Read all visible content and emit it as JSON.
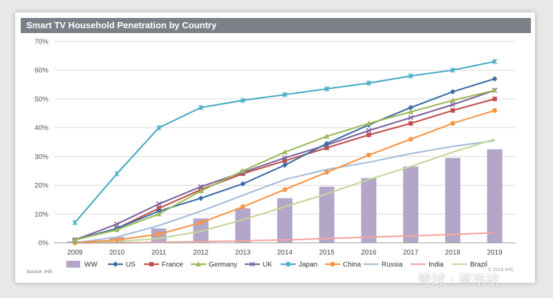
{
  "chart_data": {
    "type": "bar+line",
    "title": "Smart TV Household Penetration by Country",
    "xlabel": "",
    "ylabel": "",
    "ylim": [
      0,
      70
    ],
    "yticks": [
      "0%",
      "10%",
      "20%",
      "30%",
      "40%",
      "50%",
      "60%",
      "70%"
    ],
    "categories": [
      "2009",
      "2010",
      "2011",
      "2012",
      "2013",
      "2014",
      "2015",
      "2016",
      "2017",
      "2018",
      "2019"
    ],
    "bar_series": {
      "name": "WW",
      "color": "#b3a6c8",
      "values": [
        0.5,
        2,
        5,
        8.5,
        12,
        15.5,
        19.5,
        22.5,
        26.5,
        29.5,
        32.5
      ]
    },
    "series": [
      {
        "name": "US",
        "color": "#3f6fa8",
        "marker": "diamond",
        "values": [
          1,
          5,
          11,
          15.5,
          20.5,
          27,
          34.5,
          41,
          47,
          52.5,
          57
        ]
      },
      {
        "name": "France",
        "color": "#c0504d",
        "marker": "square",
        "values": [
          1,
          5,
          12,
          18.5,
          24,
          28.5,
          33,
          37.5,
          41.5,
          46,
          50
        ]
      },
      {
        "name": "Germany",
        "color": "#9bbb59",
        "marker": "triangle",
        "values": [
          1,
          4.5,
          10,
          18,
          25,
          31.5,
          37,
          41.5,
          45.5,
          49.5,
          53
        ]
      },
      {
        "name": "UK",
        "color": "#7f649e",
        "marker": "x",
        "values": [
          1,
          6.5,
          13.5,
          19.5,
          24.5,
          29.5,
          34,
          39,
          43.5,
          48,
          53
        ]
      },
      {
        "name": "Japan",
        "color": "#4bacc6",
        "marker": "star",
        "values": [
          7,
          24,
          40,
          47,
          49.5,
          51.5,
          53.5,
          55.5,
          58,
          60,
          63
        ]
      },
      {
        "name": "China",
        "color": "#f79646",
        "marker": "circle",
        "values": [
          0,
          1,
          3,
          7,
          12.5,
          18.5,
          24.5,
          30.5,
          36,
          41.5,
          46
        ]
      },
      {
        "name": "Russia",
        "color": "#a6bddb",
        "marker": "none",
        "values": [
          0,
          2,
          6,
          11,
          16.5,
          22,
          25.5,
          28,
          31,
          33.5,
          35.5
        ]
      },
      {
        "name": "India",
        "color": "#f2a7a0",
        "marker": "none",
        "values": [
          0,
          0,
          0.2,
          0.4,
          0.7,
          1,
          1.5,
          2,
          2.4,
          2.9,
          3.5
        ]
      },
      {
        "name": "Brazil",
        "color": "#c4d79b",
        "marker": "none",
        "values": [
          0,
          0.5,
          1.5,
          4,
          8,
          12.5,
          17,
          22,
          26.5,
          31.5,
          36
        ]
      }
    ],
    "legend": [
      "WW",
      "US",
      "France",
      "Germany",
      "UK",
      "Japan",
      "China",
      "Russia",
      "India",
      "Brazil"
    ],
    "legend_position": "bottom",
    "grid": "horizontal"
  },
  "source_text": "Source: IHS",
  "copyright_text": "© 2016 IHS",
  "watermark_text": "雪球 · 蒋韦杭"
}
